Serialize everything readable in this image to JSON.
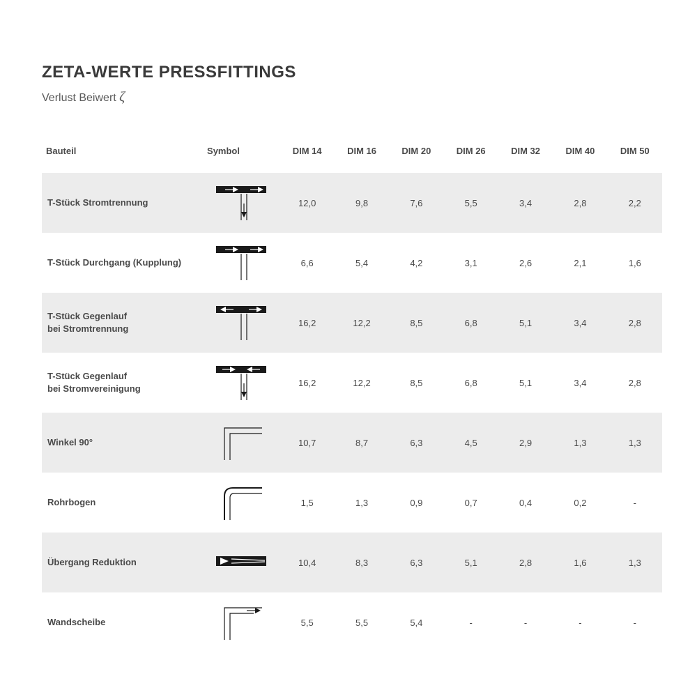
{
  "title": "ZETA-WERTE PRESSFITTINGS",
  "subtitle_prefix": "Verlust Beiwert ",
  "subtitle_symbol": "ζ",
  "columns": {
    "label": "Bauteil",
    "symbol": "Symbol",
    "dims": [
      "DIM 14",
      "DIM 16",
      "DIM 20",
      "DIM 26",
      "DIM 32",
      "DIM 40",
      "DIM 50"
    ]
  },
  "rows": [
    {
      "label": "T-Stück Stromtrennung",
      "symbol": "tee_sep",
      "shade": true,
      "values": [
        "12,0",
        "9,8",
        "7,6",
        "5,5",
        "3,4",
        "2,8",
        "2,2"
      ]
    },
    {
      "label": "T-Stück Durchgang (Kupplung)",
      "symbol": "tee_through",
      "shade": false,
      "values": [
        "6,6",
        "5,4",
        "4,2",
        "3,1",
        "2,6",
        "2,1",
        "1,6"
      ]
    },
    {
      "label": "T-Stück Gegenlauf\nbei Stromtrennung",
      "symbol": "tee_counter_sep",
      "shade": true,
      "values": [
        "16,2",
        "12,2",
        "8,5",
        "6,8",
        "5,1",
        "3,4",
        "2,8"
      ]
    },
    {
      "label": "T-Stück Gegenlauf\nbei Stromvereinigung",
      "symbol": "tee_counter_join",
      "shade": false,
      "values": [
        "16,2",
        "12,2",
        "8,5",
        "6,8",
        "5,1",
        "3,4",
        "2,8"
      ]
    },
    {
      "label": "Winkel 90°",
      "symbol": "elbow90",
      "shade": true,
      "values": [
        "10,7",
        "8,7",
        "6,3",
        "4,5",
        "2,9",
        "1,3",
        "1,3"
      ]
    },
    {
      "label": "Rohrbogen",
      "symbol": "bend",
      "shade": false,
      "values": [
        "1,5",
        "1,3",
        "0,9",
        "0,7",
        "0,4",
        "0,2",
        "-"
      ]
    },
    {
      "label": "Übergang Reduktion",
      "symbol": "reducer",
      "shade": true,
      "values": [
        "10,4",
        "8,3",
        "6,3",
        "5,1",
        "2,8",
        "1,6",
        "1,3"
      ]
    },
    {
      "label": "Wandscheibe",
      "symbol": "wallplate",
      "shade": false,
      "values": [
        "5,5",
        "5,5",
        "5,4",
        "-",
        "-",
        "-",
        "-"
      ]
    }
  ],
  "style": {
    "background": "#ffffff",
    "shade_color": "#ececec",
    "text_color": "#4a4a4a",
    "title_color": "#3a3a3a",
    "symbol_color": "#1a1a1a",
    "header_fontsize": 13,
    "cell_fontsize": 13,
    "title_fontsize": 24,
    "subtitle_fontsize": 16
  }
}
